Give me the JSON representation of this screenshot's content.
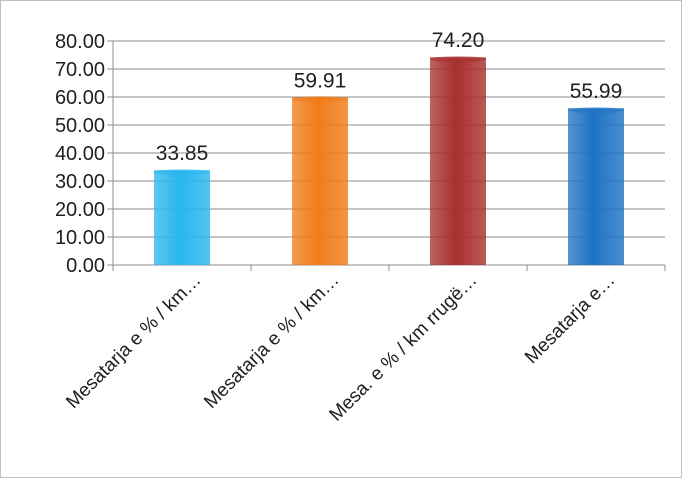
{
  "chart_data": {
    "type": "bar",
    "title": "",
    "xlabel": "",
    "ylabel": "",
    "categories": [
      "Mesatarja e % / km…",
      "Mesatarja e % / km…",
      "Mesa. e % / km rrugë…",
      "Mesatarja e…"
    ],
    "values": [
      33.85,
      59.91,
      74.2,
      55.99
    ],
    "data_labels": [
      "33.85",
      "59.91",
      "74.20",
      "55.99"
    ],
    "yticks": [
      "0.00",
      "10.00",
      "20.00",
      "30.00",
      "40.00",
      "50.00",
      "60.00",
      "70.00",
      "80.00"
    ],
    "ylim": [
      0,
      80
    ],
    "grid": true,
    "legend": "none",
    "colors": [
      "#29b6ee",
      "#f07c1a",
      "#a8302e",
      "#1f72c4"
    ]
  }
}
